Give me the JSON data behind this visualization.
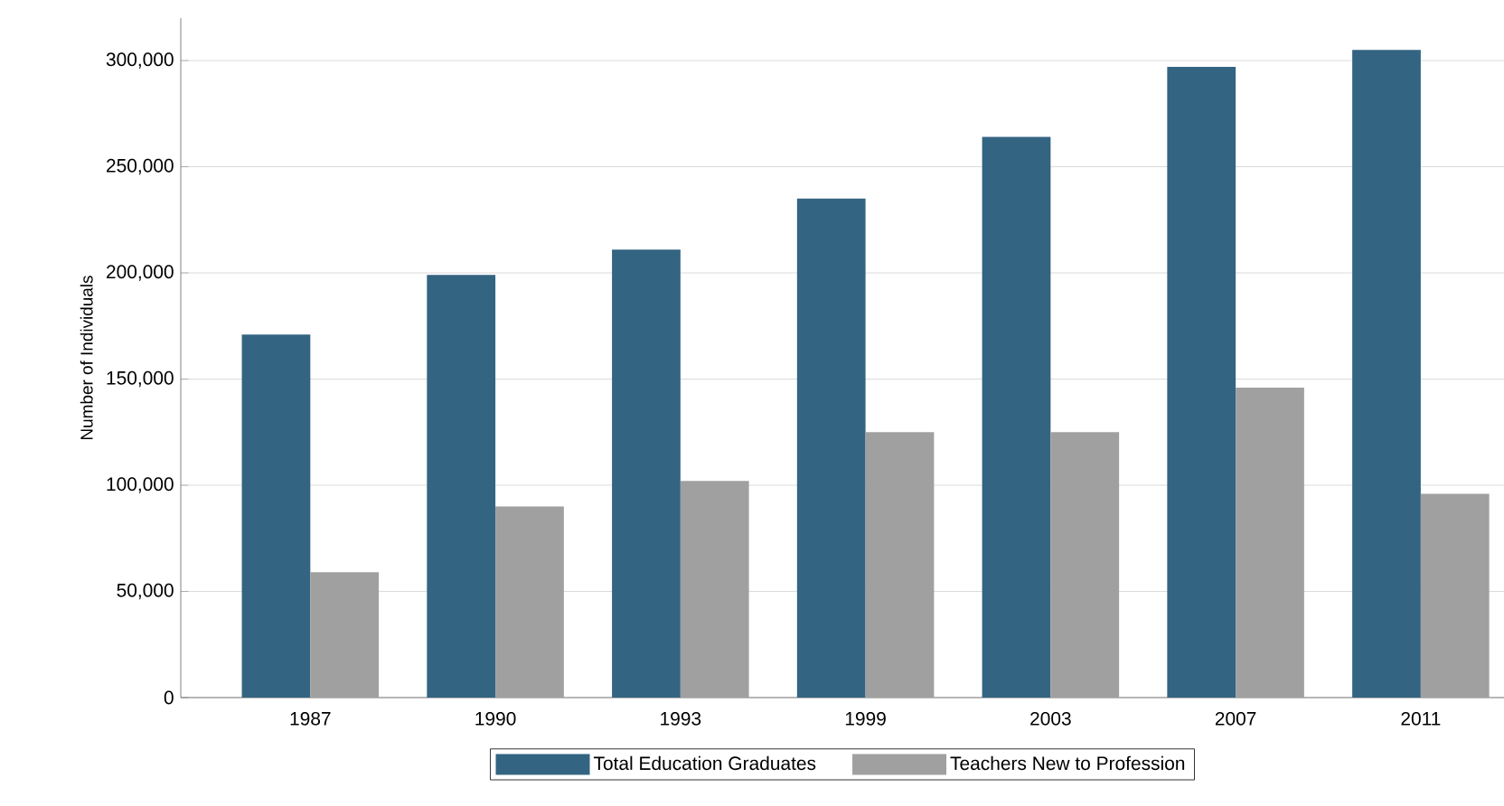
{
  "chart_data": {
    "type": "bar",
    "ylabel": "Number of Individuals",
    "categories": [
      "1987",
      "1990",
      "1993",
      "1999",
      "2003",
      "2007",
      "2011"
    ],
    "series": [
      {
        "name": "Total Education Graduates",
        "color": "#336482",
        "values": [
          171000,
          199000,
          211000,
          235000,
          264000,
          297000,
          305000
        ]
      },
      {
        "name": "Teachers New to Profession",
        "color": "#a0a0a0",
        "values": [
          59000,
          90000,
          102000,
          125000,
          125000,
          146000,
          96000
        ]
      }
    ],
    "ylim": [
      0,
      320000
    ],
    "yticks": [
      {
        "value": 0,
        "label": "0"
      },
      {
        "value": 50000,
        "label": "50,000"
      },
      {
        "value": 100000,
        "label": "100,000"
      },
      {
        "value": 150000,
        "label": "150,000"
      },
      {
        "value": 200000,
        "label": "200,000"
      },
      {
        "value": 250000,
        "label": "250,000"
      },
      {
        "value": 300000,
        "label": "300,000"
      }
    ],
    "grid": "y",
    "legend": "bottom"
  }
}
